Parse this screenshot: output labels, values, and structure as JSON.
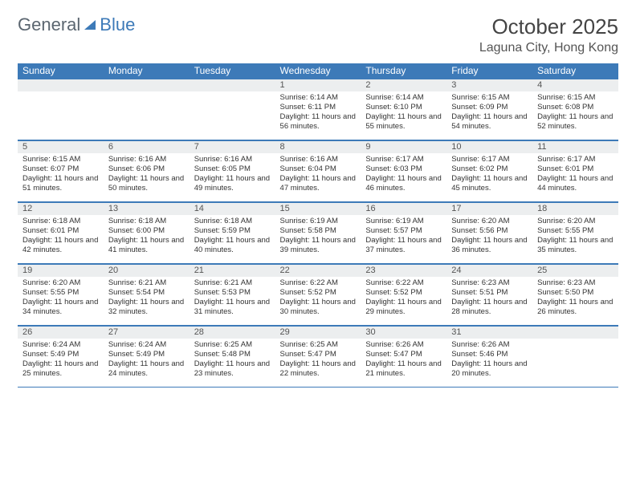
{
  "logo": {
    "text1": "General",
    "text2": "Blue"
  },
  "title": "October 2025",
  "subtitle": "Laguna City, Hong Kong",
  "colors": {
    "accent": "#3d7ab8",
    "daybg": "#eceeef"
  },
  "weekdays": [
    "Sunday",
    "Monday",
    "Tuesday",
    "Wednesday",
    "Thursday",
    "Friday",
    "Saturday"
  ],
  "weeks": [
    [
      {
        "n": "",
        "sr": "",
        "ss": "",
        "dl": ""
      },
      {
        "n": "",
        "sr": "",
        "ss": "",
        "dl": ""
      },
      {
        "n": "",
        "sr": "",
        "ss": "",
        "dl": ""
      },
      {
        "n": "1",
        "sr": "Sunrise: 6:14 AM",
        "ss": "Sunset: 6:11 PM",
        "dl": "Daylight: 11 hours and 56 minutes."
      },
      {
        "n": "2",
        "sr": "Sunrise: 6:14 AM",
        "ss": "Sunset: 6:10 PM",
        "dl": "Daylight: 11 hours and 55 minutes."
      },
      {
        "n": "3",
        "sr": "Sunrise: 6:15 AM",
        "ss": "Sunset: 6:09 PM",
        "dl": "Daylight: 11 hours and 54 minutes."
      },
      {
        "n": "4",
        "sr": "Sunrise: 6:15 AM",
        "ss": "Sunset: 6:08 PM",
        "dl": "Daylight: 11 hours and 52 minutes."
      }
    ],
    [
      {
        "n": "5",
        "sr": "Sunrise: 6:15 AM",
        "ss": "Sunset: 6:07 PM",
        "dl": "Daylight: 11 hours and 51 minutes."
      },
      {
        "n": "6",
        "sr": "Sunrise: 6:16 AM",
        "ss": "Sunset: 6:06 PM",
        "dl": "Daylight: 11 hours and 50 minutes."
      },
      {
        "n": "7",
        "sr": "Sunrise: 6:16 AM",
        "ss": "Sunset: 6:05 PM",
        "dl": "Daylight: 11 hours and 49 minutes."
      },
      {
        "n": "8",
        "sr": "Sunrise: 6:16 AM",
        "ss": "Sunset: 6:04 PM",
        "dl": "Daylight: 11 hours and 47 minutes."
      },
      {
        "n": "9",
        "sr": "Sunrise: 6:17 AM",
        "ss": "Sunset: 6:03 PM",
        "dl": "Daylight: 11 hours and 46 minutes."
      },
      {
        "n": "10",
        "sr": "Sunrise: 6:17 AM",
        "ss": "Sunset: 6:02 PM",
        "dl": "Daylight: 11 hours and 45 minutes."
      },
      {
        "n": "11",
        "sr": "Sunrise: 6:17 AM",
        "ss": "Sunset: 6:01 PM",
        "dl": "Daylight: 11 hours and 44 minutes."
      }
    ],
    [
      {
        "n": "12",
        "sr": "Sunrise: 6:18 AM",
        "ss": "Sunset: 6:01 PM",
        "dl": "Daylight: 11 hours and 42 minutes."
      },
      {
        "n": "13",
        "sr": "Sunrise: 6:18 AM",
        "ss": "Sunset: 6:00 PM",
        "dl": "Daylight: 11 hours and 41 minutes."
      },
      {
        "n": "14",
        "sr": "Sunrise: 6:18 AM",
        "ss": "Sunset: 5:59 PM",
        "dl": "Daylight: 11 hours and 40 minutes."
      },
      {
        "n": "15",
        "sr": "Sunrise: 6:19 AM",
        "ss": "Sunset: 5:58 PM",
        "dl": "Daylight: 11 hours and 39 minutes."
      },
      {
        "n": "16",
        "sr": "Sunrise: 6:19 AM",
        "ss": "Sunset: 5:57 PM",
        "dl": "Daylight: 11 hours and 37 minutes."
      },
      {
        "n": "17",
        "sr": "Sunrise: 6:20 AM",
        "ss": "Sunset: 5:56 PM",
        "dl": "Daylight: 11 hours and 36 minutes."
      },
      {
        "n": "18",
        "sr": "Sunrise: 6:20 AM",
        "ss": "Sunset: 5:55 PM",
        "dl": "Daylight: 11 hours and 35 minutes."
      }
    ],
    [
      {
        "n": "19",
        "sr": "Sunrise: 6:20 AM",
        "ss": "Sunset: 5:55 PM",
        "dl": "Daylight: 11 hours and 34 minutes."
      },
      {
        "n": "20",
        "sr": "Sunrise: 6:21 AM",
        "ss": "Sunset: 5:54 PM",
        "dl": "Daylight: 11 hours and 32 minutes."
      },
      {
        "n": "21",
        "sr": "Sunrise: 6:21 AM",
        "ss": "Sunset: 5:53 PM",
        "dl": "Daylight: 11 hours and 31 minutes."
      },
      {
        "n": "22",
        "sr": "Sunrise: 6:22 AM",
        "ss": "Sunset: 5:52 PM",
        "dl": "Daylight: 11 hours and 30 minutes."
      },
      {
        "n": "23",
        "sr": "Sunrise: 6:22 AM",
        "ss": "Sunset: 5:52 PM",
        "dl": "Daylight: 11 hours and 29 minutes."
      },
      {
        "n": "24",
        "sr": "Sunrise: 6:23 AM",
        "ss": "Sunset: 5:51 PM",
        "dl": "Daylight: 11 hours and 28 minutes."
      },
      {
        "n": "25",
        "sr": "Sunrise: 6:23 AM",
        "ss": "Sunset: 5:50 PM",
        "dl": "Daylight: 11 hours and 26 minutes."
      }
    ],
    [
      {
        "n": "26",
        "sr": "Sunrise: 6:24 AM",
        "ss": "Sunset: 5:49 PM",
        "dl": "Daylight: 11 hours and 25 minutes."
      },
      {
        "n": "27",
        "sr": "Sunrise: 6:24 AM",
        "ss": "Sunset: 5:49 PM",
        "dl": "Daylight: 11 hours and 24 minutes."
      },
      {
        "n": "28",
        "sr": "Sunrise: 6:25 AM",
        "ss": "Sunset: 5:48 PM",
        "dl": "Daylight: 11 hours and 23 minutes."
      },
      {
        "n": "29",
        "sr": "Sunrise: 6:25 AM",
        "ss": "Sunset: 5:47 PM",
        "dl": "Daylight: 11 hours and 22 minutes."
      },
      {
        "n": "30",
        "sr": "Sunrise: 6:26 AM",
        "ss": "Sunset: 5:47 PM",
        "dl": "Daylight: 11 hours and 21 minutes."
      },
      {
        "n": "31",
        "sr": "Sunrise: 6:26 AM",
        "ss": "Sunset: 5:46 PM",
        "dl": "Daylight: 11 hours and 20 minutes."
      },
      {
        "n": "",
        "sr": "",
        "ss": "",
        "dl": ""
      }
    ]
  ]
}
